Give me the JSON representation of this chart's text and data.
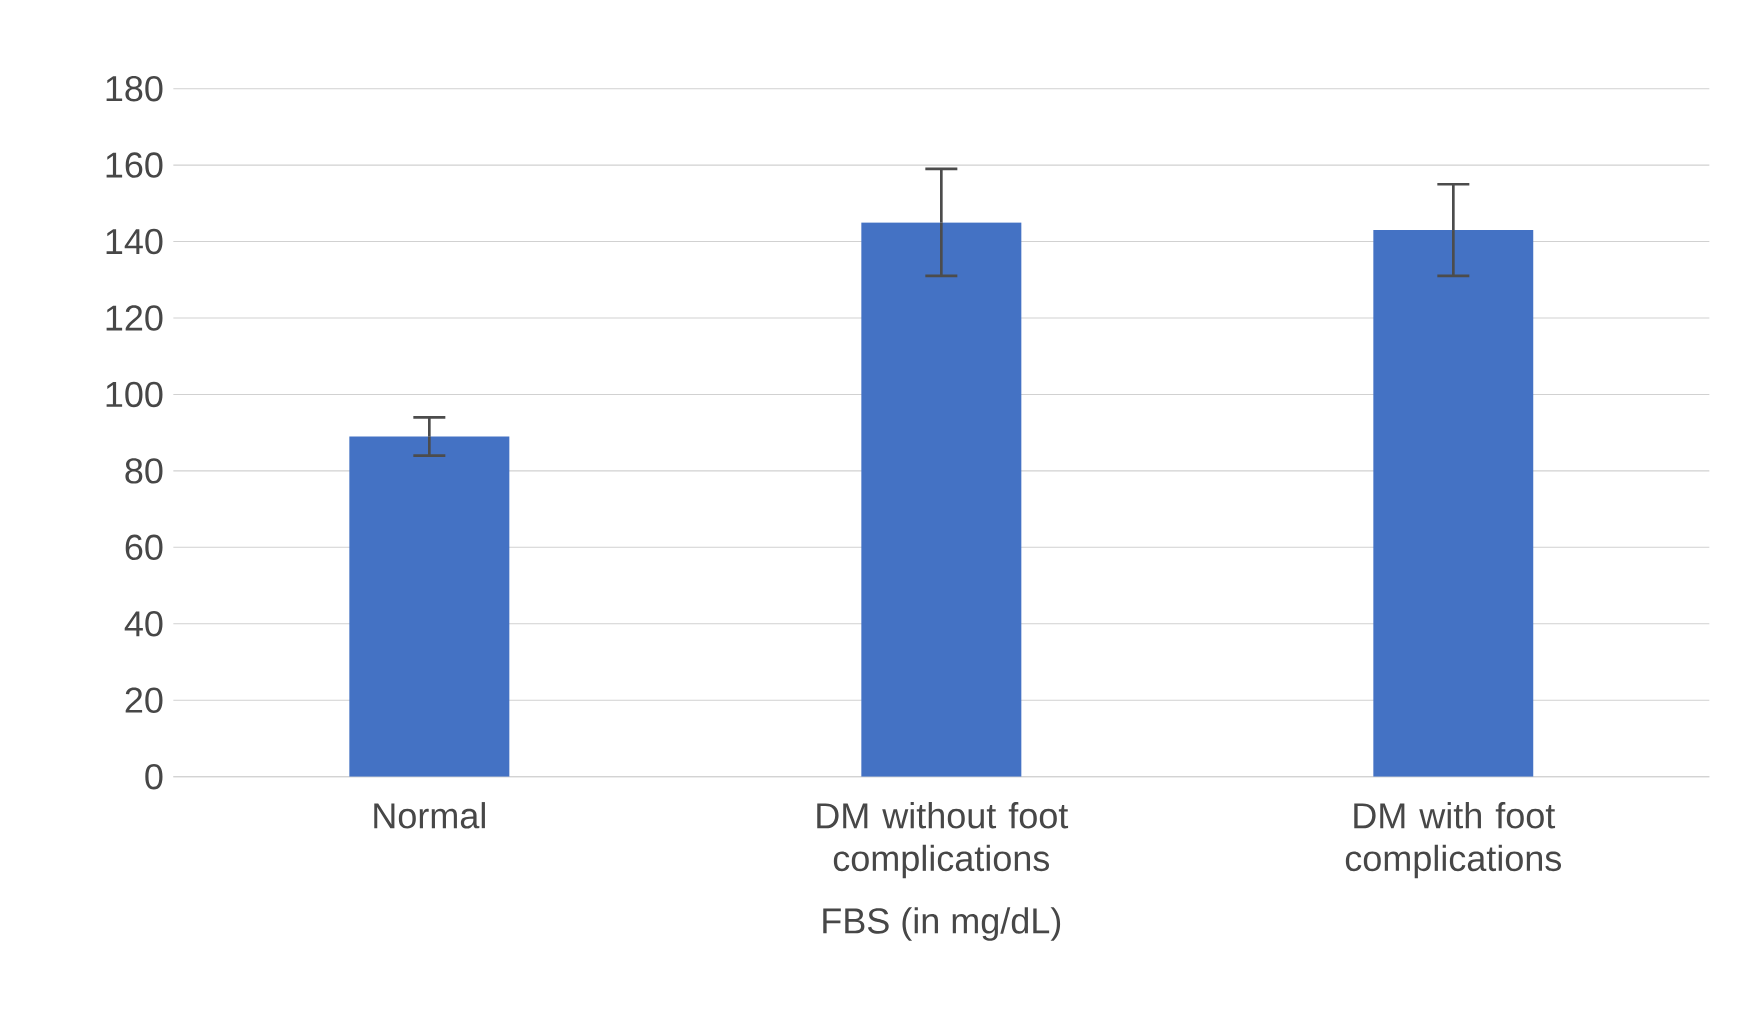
{
  "chart_data": {
    "type": "bar",
    "xlabel": "FBS (in mg/dL)",
    "categories": [
      "Normal",
      "DM without foot complications",
      "DM with foot complications"
    ],
    "values": [
      89,
      145,
      143
    ],
    "errors": [
      5,
      14,
      12
    ],
    "color": "#4472c4",
    "ylim": [
      0,
      180
    ],
    "yticks": [
      0,
      20,
      40,
      60,
      80,
      100,
      120,
      140,
      160,
      180
    ],
    "grid": "y"
  }
}
